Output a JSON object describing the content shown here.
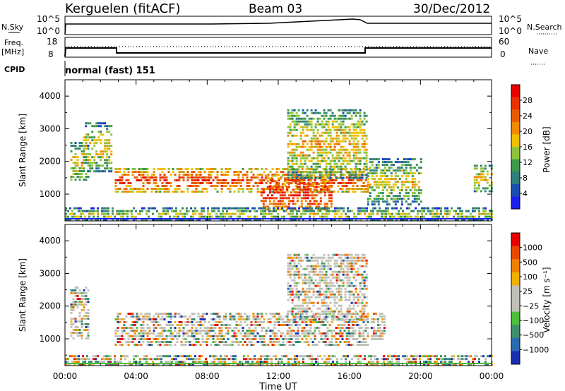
{
  "header": {
    "station": "Kerguelen (fitACF)",
    "beam": "Beam 03",
    "date": "30/Dec/2012"
  },
  "panels": {
    "nsky_label": "N.Sky",
    "nsearch_label": "N.Search",
    "freq_label": "Freq.",
    "freq_unit": "[MHz]",
    "nave_label": "Nave",
    "cpid_label": "CPID",
    "cpid_value": "normal (fast) 151",
    "nsky_ticks": [
      "10^5",
      "10^0"
    ],
    "freq_left_ticks": [
      "18",
      "8"
    ],
    "nave_right_ticks": [
      "60",
      "0"
    ]
  },
  "chart_data": [
    {
      "type": "heatmap",
      "name": "power",
      "ylabel": "Slant Range [km]",
      "xlabel": "Time UT",
      "xlim": [
        0,
        24
      ],
      "ylim": [
        180,
        4500
      ],
      "x_ticks": [
        "00:00",
        "04:00",
        "08:00",
        "12:00",
        "16:00",
        "20:00",
        "00:00"
      ],
      "y_ticks": [
        1000,
        2000,
        3000,
        4000
      ],
      "colorbar": {
        "label": "Power [dB]",
        "ticks": [
          "4",
          "8",
          "12",
          "16",
          "20",
          "24",
          "28"
        ],
        "colors": [
          "#1e1ef0",
          "#1a4fb0",
          "#2f7f7a",
          "#3d9a4a",
          "#8fc43a",
          "#f0c000",
          "#f08a00",
          "#e85a00",
          "#e83000",
          "#e80000"
        ]
      },
      "bands": [
        {
          "t0": 0.3,
          "t1": 1.3,
          "r0": 1400,
          "r1": 2600,
          "level": 0.35
        },
        {
          "t0": 1.0,
          "t1": 2.6,
          "r0": 1700,
          "r1": 3200,
          "level": 0.35
        },
        {
          "t0": 2.8,
          "t1": 17.0,
          "r0": 1100,
          "r1": 1800,
          "level": 0.85
        },
        {
          "t0": 11.0,
          "t1": 15.0,
          "r0": 500,
          "r1": 1600,
          "level": 0.95
        },
        {
          "t0": 12.5,
          "t1": 17.0,
          "r0": 1500,
          "r1": 3600,
          "level": 0.4
        },
        {
          "t0": 17.0,
          "t1": 20.0,
          "r0": 700,
          "r1": 2100,
          "level": 0.3
        },
        {
          "t0": 23.0,
          "t1": 24.0,
          "r0": 1100,
          "r1": 1900,
          "level": 0.4
        },
        {
          "t0": 0.0,
          "t1": 24.0,
          "r0": 200,
          "r1": 600,
          "level": 0.25
        }
      ]
    },
    {
      "type": "heatmap",
      "name": "velocity",
      "ylabel": "Slant Range [km]",
      "xlabel": "Time UT",
      "xlim": [
        0,
        24
      ],
      "ylim": [
        180,
        4500
      ],
      "x_ticks": [
        "00:00",
        "04:00",
        "08:00",
        "12:00",
        "16:00",
        "20:00",
        "00:00"
      ],
      "y_ticks": [
        1000,
        2000,
        3000,
        4000
      ],
      "colorbar": {
        "label": "Velocity [m s⁻¹]",
        "ticks": [
          "1000",
          "500",
          "100",
          "25",
          "−25",
          "−100",
          "−500",
          "−1000"
        ],
        "colors": [
          "#1a2fb0",
          "#2a6ab0",
          "#3d8f6a",
          "#4dbf3a",
          "#c0c0b8",
          "#c0c0b8",
          "#f0b000",
          "#f08000",
          "#e84800",
          "#e80000"
        ]
      },
      "bands": [
        {
          "t0": 0.3,
          "t1": 1.3,
          "r0": 1000,
          "r1": 2600,
          "level": 0.6
        },
        {
          "t0": 2.8,
          "t1": 17.0,
          "r0": 800,
          "r1": 1800,
          "level": 0.45
        },
        {
          "t0": 12.5,
          "t1": 17.0,
          "r0": 1600,
          "r1": 3600,
          "level": 0.7
        },
        {
          "t0": 17.2,
          "t1": 18.0,
          "r0": 1000,
          "r1": 1800,
          "level": 0.9
        },
        {
          "t0": 0.0,
          "t1": 24.0,
          "r0": 200,
          "r1": 500,
          "level": 0.3
        }
      ]
    }
  ]
}
